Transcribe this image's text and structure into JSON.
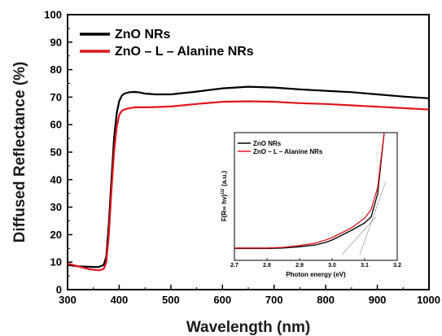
{
  "chart_data": [
    {
      "type": "line",
      "title": "",
      "xlabel": "Wavelength (nm)",
      "ylabel": "Diffused Reflectance (%)",
      "xlim": [
        300,
        1000
      ],
      "ylim": [
        0,
        100
      ],
      "xticks": [
        "300",
        "400",
        "500",
        "600",
        "700",
        "800",
        "900",
        "1000"
      ],
      "yticks": [
        "0",
        "10",
        "20",
        "30",
        "40",
        "50",
        "60",
        "70",
        "80",
        "90",
        "100"
      ],
      "legend_position": "top-left",
      "grid": false,
      "series": [
        {
          "name": "ZnO NRs",
          "color": "#000000",
          "x": [
            300,
            320,
            340,
            360,
            370,
            375,
            380,
            385,
            390,
            395,
            400,
            405,
            410,
            420,
            430,
            440,
            450,
            470,
            500,
            550,
            600,
            650,
            700,
            750,
            800,
            850,
            900,
            950,
            1000
          ],
          "y": [
            9,
            8.5,
            8.3,
            8.2,
            9,
            12,
            24,
            40,
            55,
            64,
            68.5,
            70.5,
            71.3,
            71.8,
            71.9,
            71.7,
            71.3,
            71,
            71,
            72,
            73.2,
            73.8,
            73.5,
            72.8,
            72.3,
            71.8,
            71,
            70.2,
            69.6
          ]
        },
        {
          "name": "ZnO – L – Alanine NRs",
          "color": "#e0161d",
          "x": [
            300,
            320,
            340,
            360,
            370,
            375,
            380,
            385,
            390,
            395,
            400,
            405,
            410,
            420,
            430,
            440,
            450,
            470,
            500,
            550,
            600,
            650,
            700,
            750,
            800,
            850,
            900,
            950,
            1000
          ],
          "y": [
            9.5,
            8.5,
            7.5,
            7,
            7.5,
            10,
            20,
            36,
            50,
            59,
            63.5,
            65,
            65.5,
            66,
            66.3,
            66.3,
            66.3,
            66.4,
            66.6,
            67.5,
            68.3,
            68.5,
            68.3,
            67.8,
            67.5,
            67,
            66.5,
            66,
            65.5
          ]
        }
      ]
    },
    {
      "type": "line",
      "title": "",
      "xlabel": "Photon energy  (eV)",
      "ylabel": "F(R∞ hν)",
      "ylabel_superscript": "1/2",
      "ylabel_suffix": "(a.u.)",
      "xlim": [
        2.7,
        3.2
      ],
      "xticks": [
        "2.7",
        "2.8",
        "2.9",
        "3.0",
        "3.1",
        "3.2"
      ],
      "legend_position": "top-left",
      "grid": false,
      "series": [
        {
          "name": "ZnO NRs",
          "color": "#000000",
          "x": [
            2.7,
            2.8,
            2.85,
            2.9,
            2.95,
            2.98,
            3.0,
            3.03,
            3.06,
            3.08,
            3.1,
            3.12,
            3.14,
            3.15,
            3.16
          ],
          "y": [
            0.05,
            0.05,
            0.055,
            0.065,
            0.08,
            0.1,
            0.12,
            0.16,
            0.2,
            0.23,
            0.26,
            0.31,
            0.5,
            0.75,
            1.0
          ]
        },
        {
          "name": "ZnO – L – Alanine NRs",
          "color": "#e0161d",
          "x": [
            2.7,
            2.8,
            2.85,
            2.9,
            2.95,
            2.98,
            3.0,
            3.03,
            3.06,
            3.08,
            3.1,
            3.12,
            3.14,
            3.15,
            3.16
          ],
          "y": [
            0.055,
            0.055,
            0.06,
            0.075,
            0.095,
            0.12,
            0.14,
            0.18,
            0.22,
            0.26,
            0.3,
            0.37,
            0.55,
            0.78,
            1.0
          ]
        }
      ]
    }
  ]
}
